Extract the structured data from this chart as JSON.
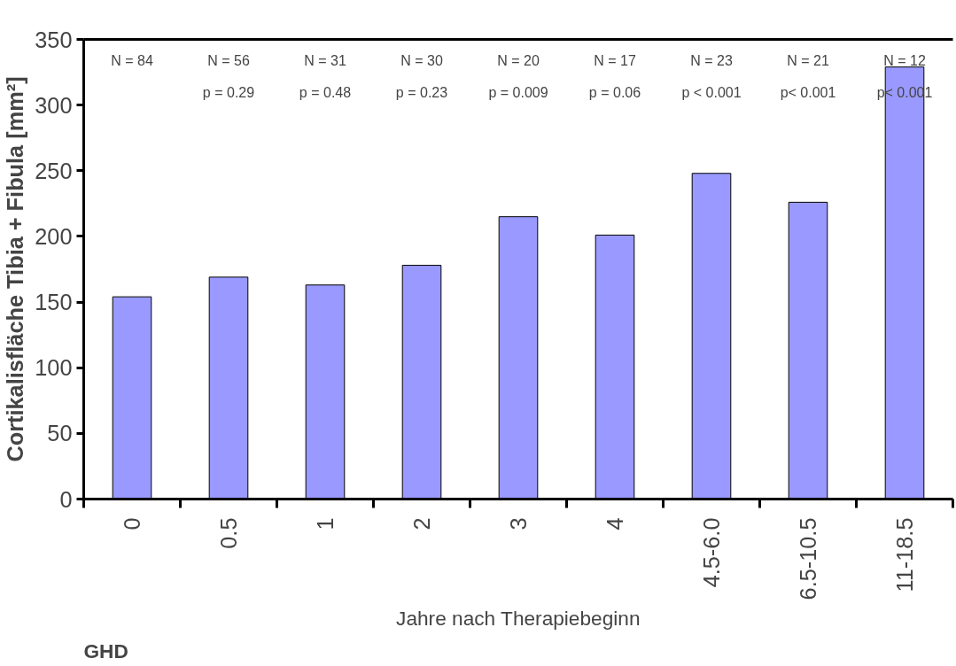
{
  "chart_data": {
    "type": "bar",
    "xlabel": "Jahre nach Therapiebeginn",
    "ylabel": "Cortikalisfläche Tibia + Fibula [mm²]",
    "categories": [
      "0",
      "0.5",
      "1",
      "2",
      "3",
      "4",
      "4.5-6.0",
      "6.5-10.5",
      "11-18.5"
    ],
    "values": [
      154,
      169,
      163,
      178,
      215,
      201,
      248,
      226,
      329
    ],
    "color": "#9999ff",
    "ylim": [
      0,
      350
    ],
    "yticks": [
      0,
      50,
      100,
      150,
      200,
      250,
      300,
      350
    ],
    "grid": false,
    "annotations": [
      "N = 84",
      "N = 56",
      "N = 31",
      "N = 30",
      "N = 20",
      "N = 17",
      "N = 23",
      "N = 21",
      "N = 12",
      "p = 0.29",
      "p = 0.48",
      "p = 0.23",
      "p = 0.009",
      "p = 0.06",
      "p < 0.001",
      "p< 0.001",
      "p< 0.001",
      "GHD"
    ]
  }
}
